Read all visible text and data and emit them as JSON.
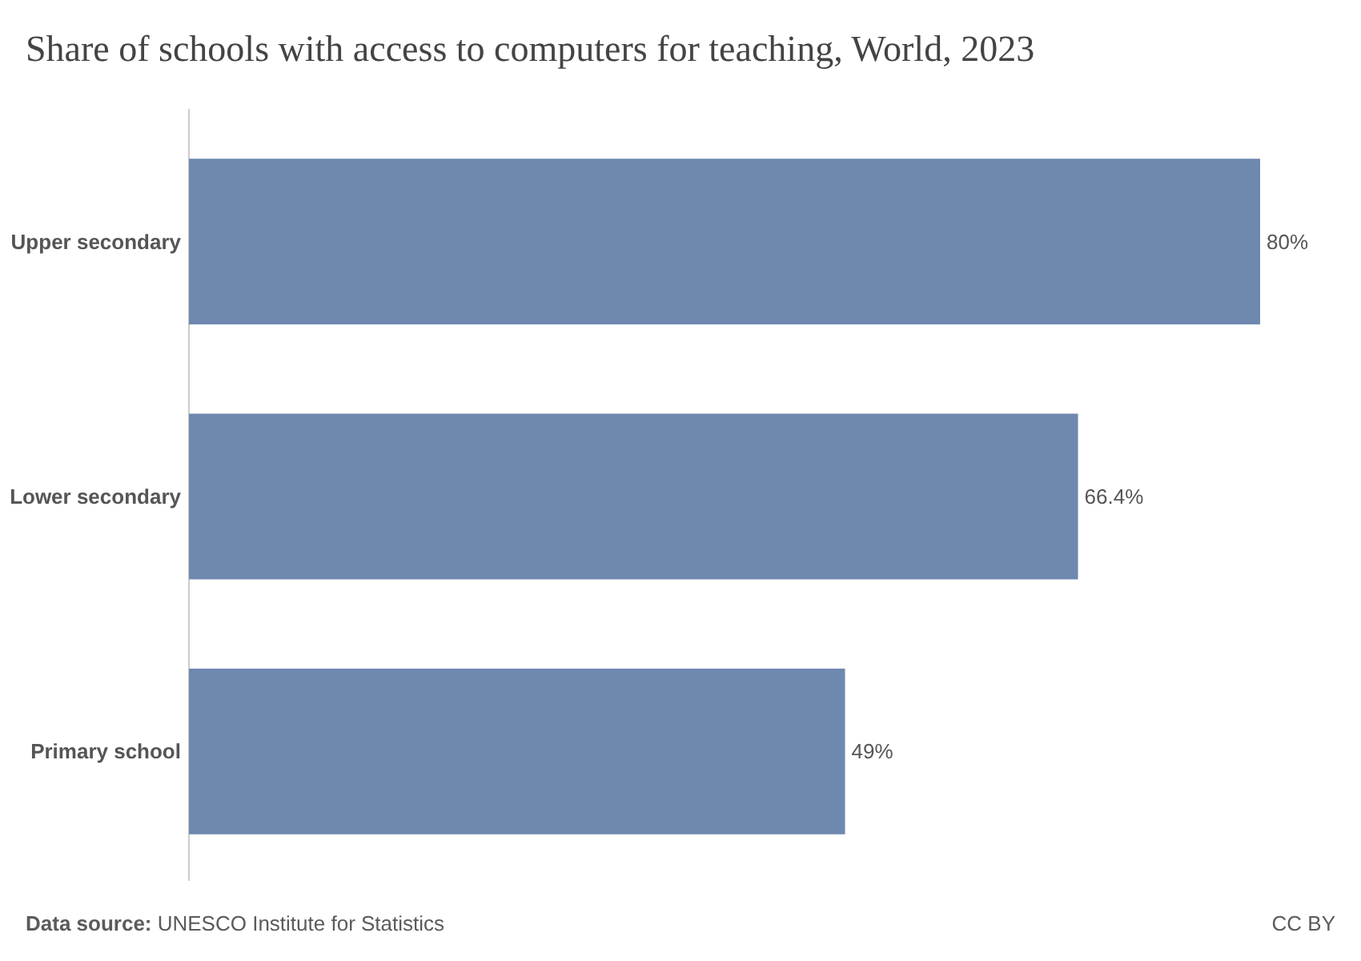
{
  "chart_data": {
    "type": "bar",
    "orientation": "horizontal",
    "title": "Share of schools with access to computers for teaching, World, 2023",
    "categories": [
      "Upper secondary",
      "Lower secondary",
      "Primary school"
    ],
    "values": [
      80,
      66.4,
      49
    ],
    "value_labels": [
      "80%",
      "66.4%",
      "49%"
    ],
    "color": "#6f88b0",
    "annotations": [
      "Data source: UNESCO Institute for Statistics",
      "CC BY"
    ]
  }
}
